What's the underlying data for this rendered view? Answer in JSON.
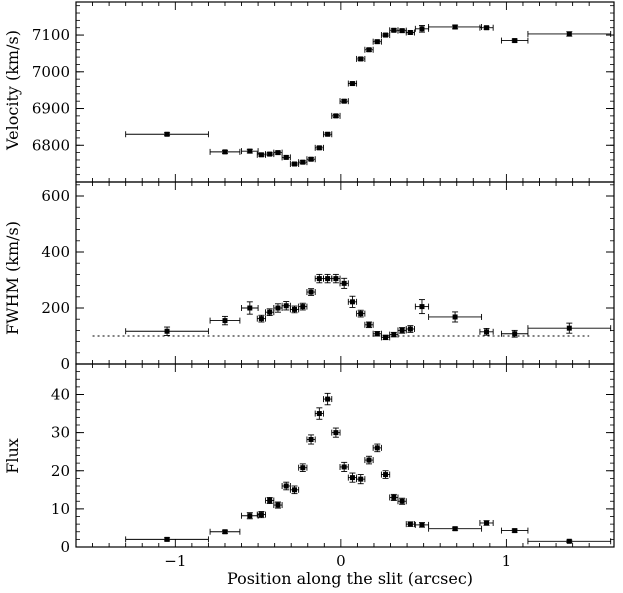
{
  "chart_data": [
    {
      "type": "scatter",
      "panel": "velocity",
      "title": "",
      "xlabel": "",
      "ylabel": "Velocity (km/s)",
      "xlim": [
        -1.6,
        1.65
      ],
      "ylim": [
        6700,
        7190
      ],
      "yticks": [
        6800,
        6900,
        7000,
        7100
      ],
      "ytick_labels": [
        "6800",
        "6900",
        "7000",
        "7100"
      ],
      "grid": false,
      "series": [
        {
          "points": [
            {
              "x": -1.05,
              "y": 6830,
              "xerr": 0.25,
              "yerr": 4
            },
            {
              "x": -0.7,
              "y": 6782,
              "xerr": 0.09,
              "yerr": 4
            },
            {
              "x": -0.55,
              "y": 6784,
              "xerr": 0.05,
              "yerr": 5
            },
            {
              "x": -0.48,
              "y": 6774,
              "xerr": 0.025,
              "yerr": 4
            },
            {
              "x": -0.43,
              "y": 6776,
              "xerr": 0.025,
              "yerr": 4
            },
            {
              "x": -0.38,
              "y": 6780,
              "xerr": 0.025,
              "yerr": 4
            },
            {
              "x": -0.33,
              "y": 6767,
              "xerr": 0.025,
              "yerr": 4
            },
            {
              "x": -0.28,
              "y": 6749,
              "xerr": 0.025,
              "yerr": 4
            },
            {
              "x": -0.23,
              "y": 6754,
              "xerr": 0.025,
              "yerr": 4
            },
            {
              "x": -0.18,
              "y": 6762,
              "xerr": 0.025,
              "yerr": 4
            },
            {
              "x": -0.13,
              "y": 6793,
              "xerr": 0.025,
              "yerr": 4
            },
            {
              "x": -0.08,
              "y": 6830,
              "xerr": 0.025,
              "yerr": 4
            },
            {
              "x": -0.03,
              "y": 6880,
              "xerr": 0.025,
              "yerr": 4
            },
            {
              "x": 0.02,
              "y": 6920,
              "xerr": 0.025,
              "yerr": 4
            },
            {
              "x": 0.07,
              "y": 6968,
              "xerr": 0.025,
              "yerr": 4
            },
            {
              "x": 0.12,
              "y": 7035,
              "xerr": 0.025,
              "yerr": 4
            },
            {
              "x": 0.17,
              "y": 7060,
              "xerr": 0.025,
              "yerr": 4
            },
            {
              "x": 0.22,
              "y": 7082,
              "xerr": 0.025,
              "yerr": 4
            },
            {
              "x": 0.27,
              "y": 7100,
              "xerr": 0.025,
              "yerr": 4
            },
            {
              "x": 0.32,
              "y": 7113,
              "xerr": 0.025,
              "yerr": 4
            },
            {
              "x": 0.37,
              "y": 7112,
              "xerr": 0.025,
              "yerr": 4
            },
            {
              "x": 0.42,
              "y": 7107,
              "xerr": 0.025,
              "yerr": 4
            },
            {
              "x": 0.49,
              "y": 7117,
              "xerr": 0.04,
              "yerr": 9
            },
            {
              "x": 0.69,
              "y": 7122,
              "xerr": 0.16,
              "yerr": 5
            },
            {
              "x": 0.88,
              "y": 7120,
              "xerr": 0.04,
              "yerr": 4
            },
            {
              "x": 1.05,
              "y": 7085,
              "xerr": 0.08,
              "yerr": 4
            },
            {
              "x": 1.38,
              "y": 7103,
              "xerr": 0.25,
              "yerr": 6
            }
          ]
        }
      ]
    },
    {
      "type": "scatter",
      "panel": "fwhm",
      "title": "",
      "xlabel": "",
      "ylabel": "FWHM (km/s)",
      "xlim": [
        -1.6,
        1.65
      ],
      "ylim": [
        0,
        650
      ],
      "yticks": [
        0,
        200,
        400,
        600
      ],
      "ytick_labels": [
        "0",
        "200",
        "400",
        "600"
      ],
      "grid": false,
      "reference_line": {
        "y": 100,
        "x": [
          -1.5,
          1.5
        ],
        "style": "dotted"
      },
      "series": [
        {
          "points": [
            {
              "x": -1.05,
              "y": 117,
              "xerr": 0.25,
              "yerr": 15
            },
            {
              "x": -0.7,
              "y": 155,
              "xerr": 0.09,
              "yerr": 15
            },
            {
              "x": -0.55,
              "y": 200,
              "xerr": 0.05,
              "yerr": 22
            },
            {
              "x": -0.48,
              "y": 162,
              "xerr": 0.025,
              "yerr": 12
            },
            {
              "x": -0.43,
              "y": 185,
              "xerr": 0.025,
              "yerr": 12
            },
            {
              "x": -0.38,
              "y": 200,
              "xerr": 0.025,
              "yerr": 15
            },
            {
              "x": -0.33,
              "y": 208,
              "xerr": 0.025,
              "yerr": 15
            },
            {
              "x": -0.28,
              "y": 195,
              "xerr": 0.025,
              "yerr": 12
            },
            {
              "x": -0.23,
              "y": 205,
              "xerr": 0.025,
              "yerr": 12
            },
            {
              "x": -0.18,
              "y": 257,
              "xerr": 0.025,
              "yerr": 12
            },
            {
              "x": -0.13,
              "y": 305,
              "xerr": 0.025,
              "yerr": 15
            },
            {
              "x": -0.08,
              "y": 305,
              "xerr": 0.025,
              "yerr": 15
            },
            {
              "x": -0.03,
              "y": 305,
              "xerr": 0.025,
              "yerr": 15
            },
            {
              "x": 0.02,
              "y": 288,
              "xerr": 0.025,
              "yerr": 18
            },
            {
              "x": 0.07,
              "y": 222,
              "xerr": 0.025,
              "yerr": 20
            },
            {
              "x": 0.12,
              "y": 180,
              "xerr": 0.025,
              "yerr": 12
            },
            {
              "x": 0.17,
              "y": 140,
              "xerr": 0.025,
              "yerr": 10
            },
            {
              "x": 0.22,
              "y": 108,
              "xerr": 0.025,
              "yerr": 8
            },
            {
              "x": 0.27,
              "y": 95,
              "xerr": 0.025,
              "yerr": 8
            },
            {
              "x": 0.32,
              "y": 105,
              "xerr": 0.025,
              "yerr": 8
            },
            {
              "x": 0.37,
              "y": 120,
              "xerr": 0.025,
              "yerr": 10
            },
            {
              "x": 0.42,
              "y": 125,
              "xerr": 0.025,
              "yerr": 12
            },
            {
              "x": 0.49,
              "y": 205,
              "xerr": 0.04,
              "yerr": 25
            },
            {
              "x": 0.69,
              "y": 168,
              "xerr": 0.16,
              "yerr": 18
            },
            {
              "x": 0.88,
              "y": 115,
              "xerr": 0.04,
              "yerr": 12
            },
            {
              "x": 1.05,
              "y": 108,
              "xerr": 0.08,
              "yerr": 12
            },
            {
              "x": 1.38,
              "y": 128,
              "xerr": 0.25,
              "yerr": 18
            }
          ]
        }
      ]
    },
    {
      "type": "scatter",
      "panel": "flux",
      "title": "",
      "xlabel": "Position along the slit (arcsec)",
      "ylabel": "Flux",
      "xlim": [
        -1.6,
        1.65
      ],
      "ylim": [
        0,
        48
      ],
      "yticks": [
        0,
        10,
        20,
        30,
        40
      ],
      "ytick_labels": [
        "0",
        "10",
        "20",
        "30",
        "40"
      ],
      "xticks": [
        -1,
        0,
        1
      ],
      "xtick_labels": [
        "−1",
        "0",
        "1"
      ],
      "grid": false,
      "series": [
        {
          "points": [
            {
              "x": -1.05,
              "y": 2.0,
              "xerr": 0.25,
              "yerr": 0.4
            },
            {
              "x": -0.7,
              "y": 4.0,
              "xerr": 0.09,
              "yerr": 0.4
            },
            {
              "x": -0.55,
              "y": 8.2,
              "xerr": 0.05,
              "yerr": 0.8
            },
            {
              "x": -0.48,
              "y": 8.5,
              "xerr": 0.025,
              "yerr": 0.8
            },
            {
              "x": -0.43,
              "y": 12.2,
              "xerr": 0.025,
              "yerr": 0.8
            },
            {
              "x": -0.38,
              "y": 11.0,
              "xerr": 0.025,
              "yerr": 0.8
            },
            {
              "x": -0.33,
              "y": 16.0,
              "xerr": 0.025,
              "yerr": 1.0
            },
            {
              "x": -0.28,
              "y": 15.0,
              "xerr": 0.025,
              "yerr": 1.0
            },
            {
              "x": -0.23,
              "y": 20.8,
              "xerr": 0.025,
              "yerr": 1.0
            },
            {
              "x": -0.18,
              "y": 28.2,
              "xerr": 0.025,
              "yerr": 1.2
            },
            {
              "x": -0.13,
              "y": 35.0,
              "xerr": 0.025,
              "yerr": 1.5
            },
            {
              "x": -0.08,
              "y": 38.8,
              "xerr": 0.025,
              "yerr": 1.5
            },
            {
              "x": -0.03,
              "y": 30.0,
              "xerr": 0.025,
              "yerr": 1.2
            },
            {
              "x": 0.02,
              "y": 21.0,
              "xerr": 0.025,
              "yerr": 1.2
            },
            {
              "x": 0.07,
              "y": 18.2,
              "xerr": 0.025,
              "yerr": 1.2
            },
            {
              "x": 0.12,
              "y": 17.8,
              "xerr": 0.025,
              "yerr": 1.2
            },
            {
              "x": 0.17,
              "y": 22.8,
              "xerr": 0.025,
              "yerr": 1.0
            },
            {
              "x": 0.22,
              "y": 26.0,
              "xerr": 0.025,
              "yerr": 1.0
            },
            {
              "x": 0.27,
              "y": 19.0,
              "xerr": 0.025,
              "yerr": 1.0
            },
            {
              "x": 0.32,
              "y": 13.0,
              "xerr": 0.025,
              "yerr": 0.8
            },
            {
              "x": 0.37,
              "y": 12.0,
              "xerr": 0.025,
              "yerr": 0.8
            },
            {
              "x": 0.42,
              "y": 6.0,
              "xerr": 0.025,
              "yerr": 0.6
            },
            {
              "x": 0.49,
              "y": 5.8,
              "xerr": 0.04,
              "yerr": 0.6
            },
            {
              "x": 0.69,
              "y": 4.8,
              "xerr": 0.16,
              "yerr": 0.4
            },
            {
              "x": 0.88,
              "y": 6.3,
              "xerr": 0.04,
              "yerr": 0.6
            },
            {
              "x": 1.05,
              "y": 4.3,
              "xerr": 0.08,
              "yerr": 0.4
            },
            {
              "x": 1.38,
              "y": 1.5,
              "xerr": 0.25,
              "yerr": 0.3
            }
          ]
        }
      ]
    }
  ]
}
